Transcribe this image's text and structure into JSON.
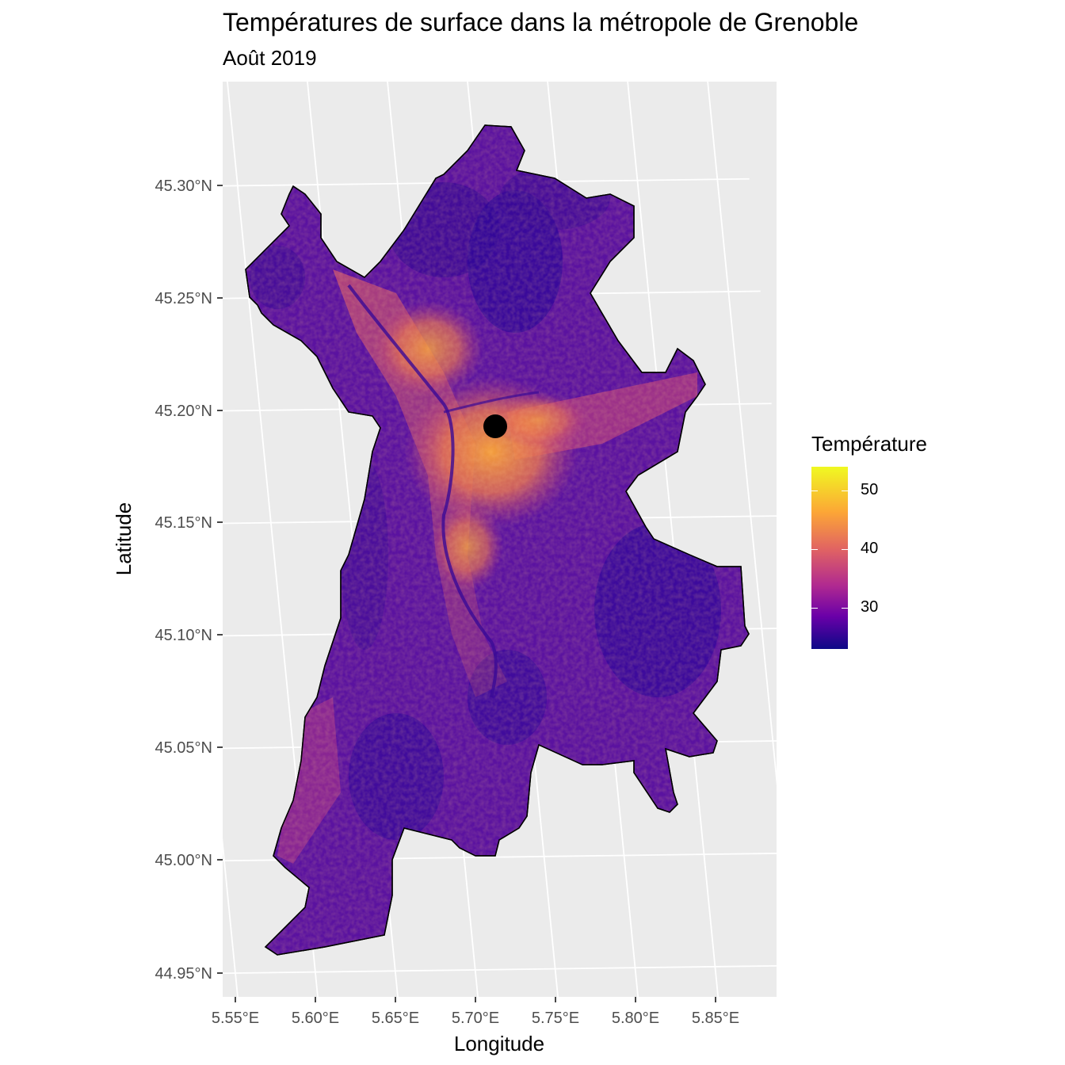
{
  "title": "Températures de surface dans la métropole de Grenoble",
  "subtitle": "Août 2019",
  "x_axis": {
    "title": "Longitude",
    "ticks": [
      "5.55°E",
      "5.60°E",
      "5.65°E",
      "5.70°E",
      "5.75°E",
      "5.80°E",
      "5.85°E"
    ]
  },
  "y_axis": {
    "title": "Latitude",
    "ticks": [
      "45.30°N",
      "45.25°N",
      "45.20°N",
      "45.15°N",
      "45.10°N",
      "45.05°N",
      "45.00°N",
      "44.95°N"
    ]
  },
  "legend": {
    "title": "Température",
    "ticks": [
      "50",
      "40",
      "30"
    ],
    "range": [
      23,
      54
    ],
    "colors": [
      "#0d0887",
      "#6a00a8",
      "#b12a90",
      "#e16462",
      "#fca636",
      "#f0f921"
    ]
  },
  "marker": {
    "lon": 5.712,
    "lat": 45.192,
    "color": "#000000"
  },
  "panel_background": "#ebebeb",
  "grid_color": "#ffffff"
}
